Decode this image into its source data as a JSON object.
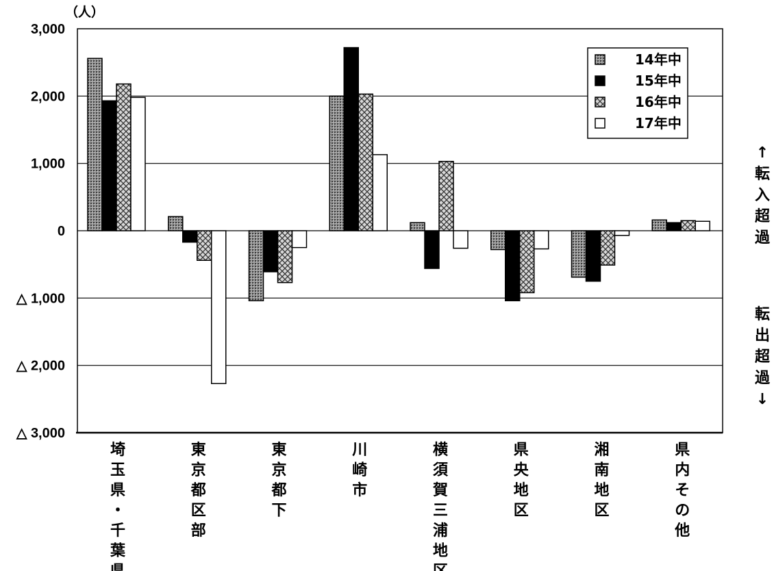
{
  "chart_data": {
    "type": "bar",
    "unit_label": "（人）",
    "categories": [
      "埼玉県・千葉県",
      "東京都区部",
      "東京都下",
      "川崎市",
      "横須賀三浦地区",
      "県央地区",
      "湘南地区",
      "県内その他"
    ],
    "series": [
      {
        "name": "14年中",
        "values": [
          2560,
          210,
          -1040,
          2000,
          120,
          -280,
          -690,
          160
        ],
        "fill": "dots"
      },
      {
        "name": "15年中",
        "values": [
          1930,
          -170,
          -610,
          2720,
          -560,
          -1040,
          -750,
          120
        ],
        "fill": "solid"
      },
      {
        "name": "16年中",
        "values": [
          2180,
          -440,
          -770,
          2030,
          1030,
          -920,
          -510,
          150
        ],
        "fill": "crosshatch"
      },
      {
        "name": "17年中",
        "values": [
          1980,
          -2270,
          -250,
          1130,
          -260,
          -270,
          -70,
          140
        ],
        "fill": "white"
      }
    ],
    "ylim": [
      -3000,
      3000
    ],
    "yticks": [
      {
        "value": 3000,
        "label": "3,000"
      },
      {
        "value": 2000,
        "label": "2,000"
      },
      {
        "value": 1000,
        "label": "1,000"
      },
      {
        "value": 0,
        "label": "0"
      },
      {
        "value": -1000,
        "label": "△ 1,000"
      },
      {
        "value": -2000,
        "label": "△ 2,000"
      },
      {
        "value": -3000,
        "label": "△ 3,000"
      }
    ],
    "side_labels": {
      "upper": "↑転入超過",
      "lower": "転出超過↓"
    },
    "grid": true,
    "legend_position": "top-right",
    "colors": {
      "solid": "#000000",
      "dots_fill": "#8a8a8a",
      "cross_fill": "#cfcfcf",
      "white": "#ffffff"
    }
  }
}
